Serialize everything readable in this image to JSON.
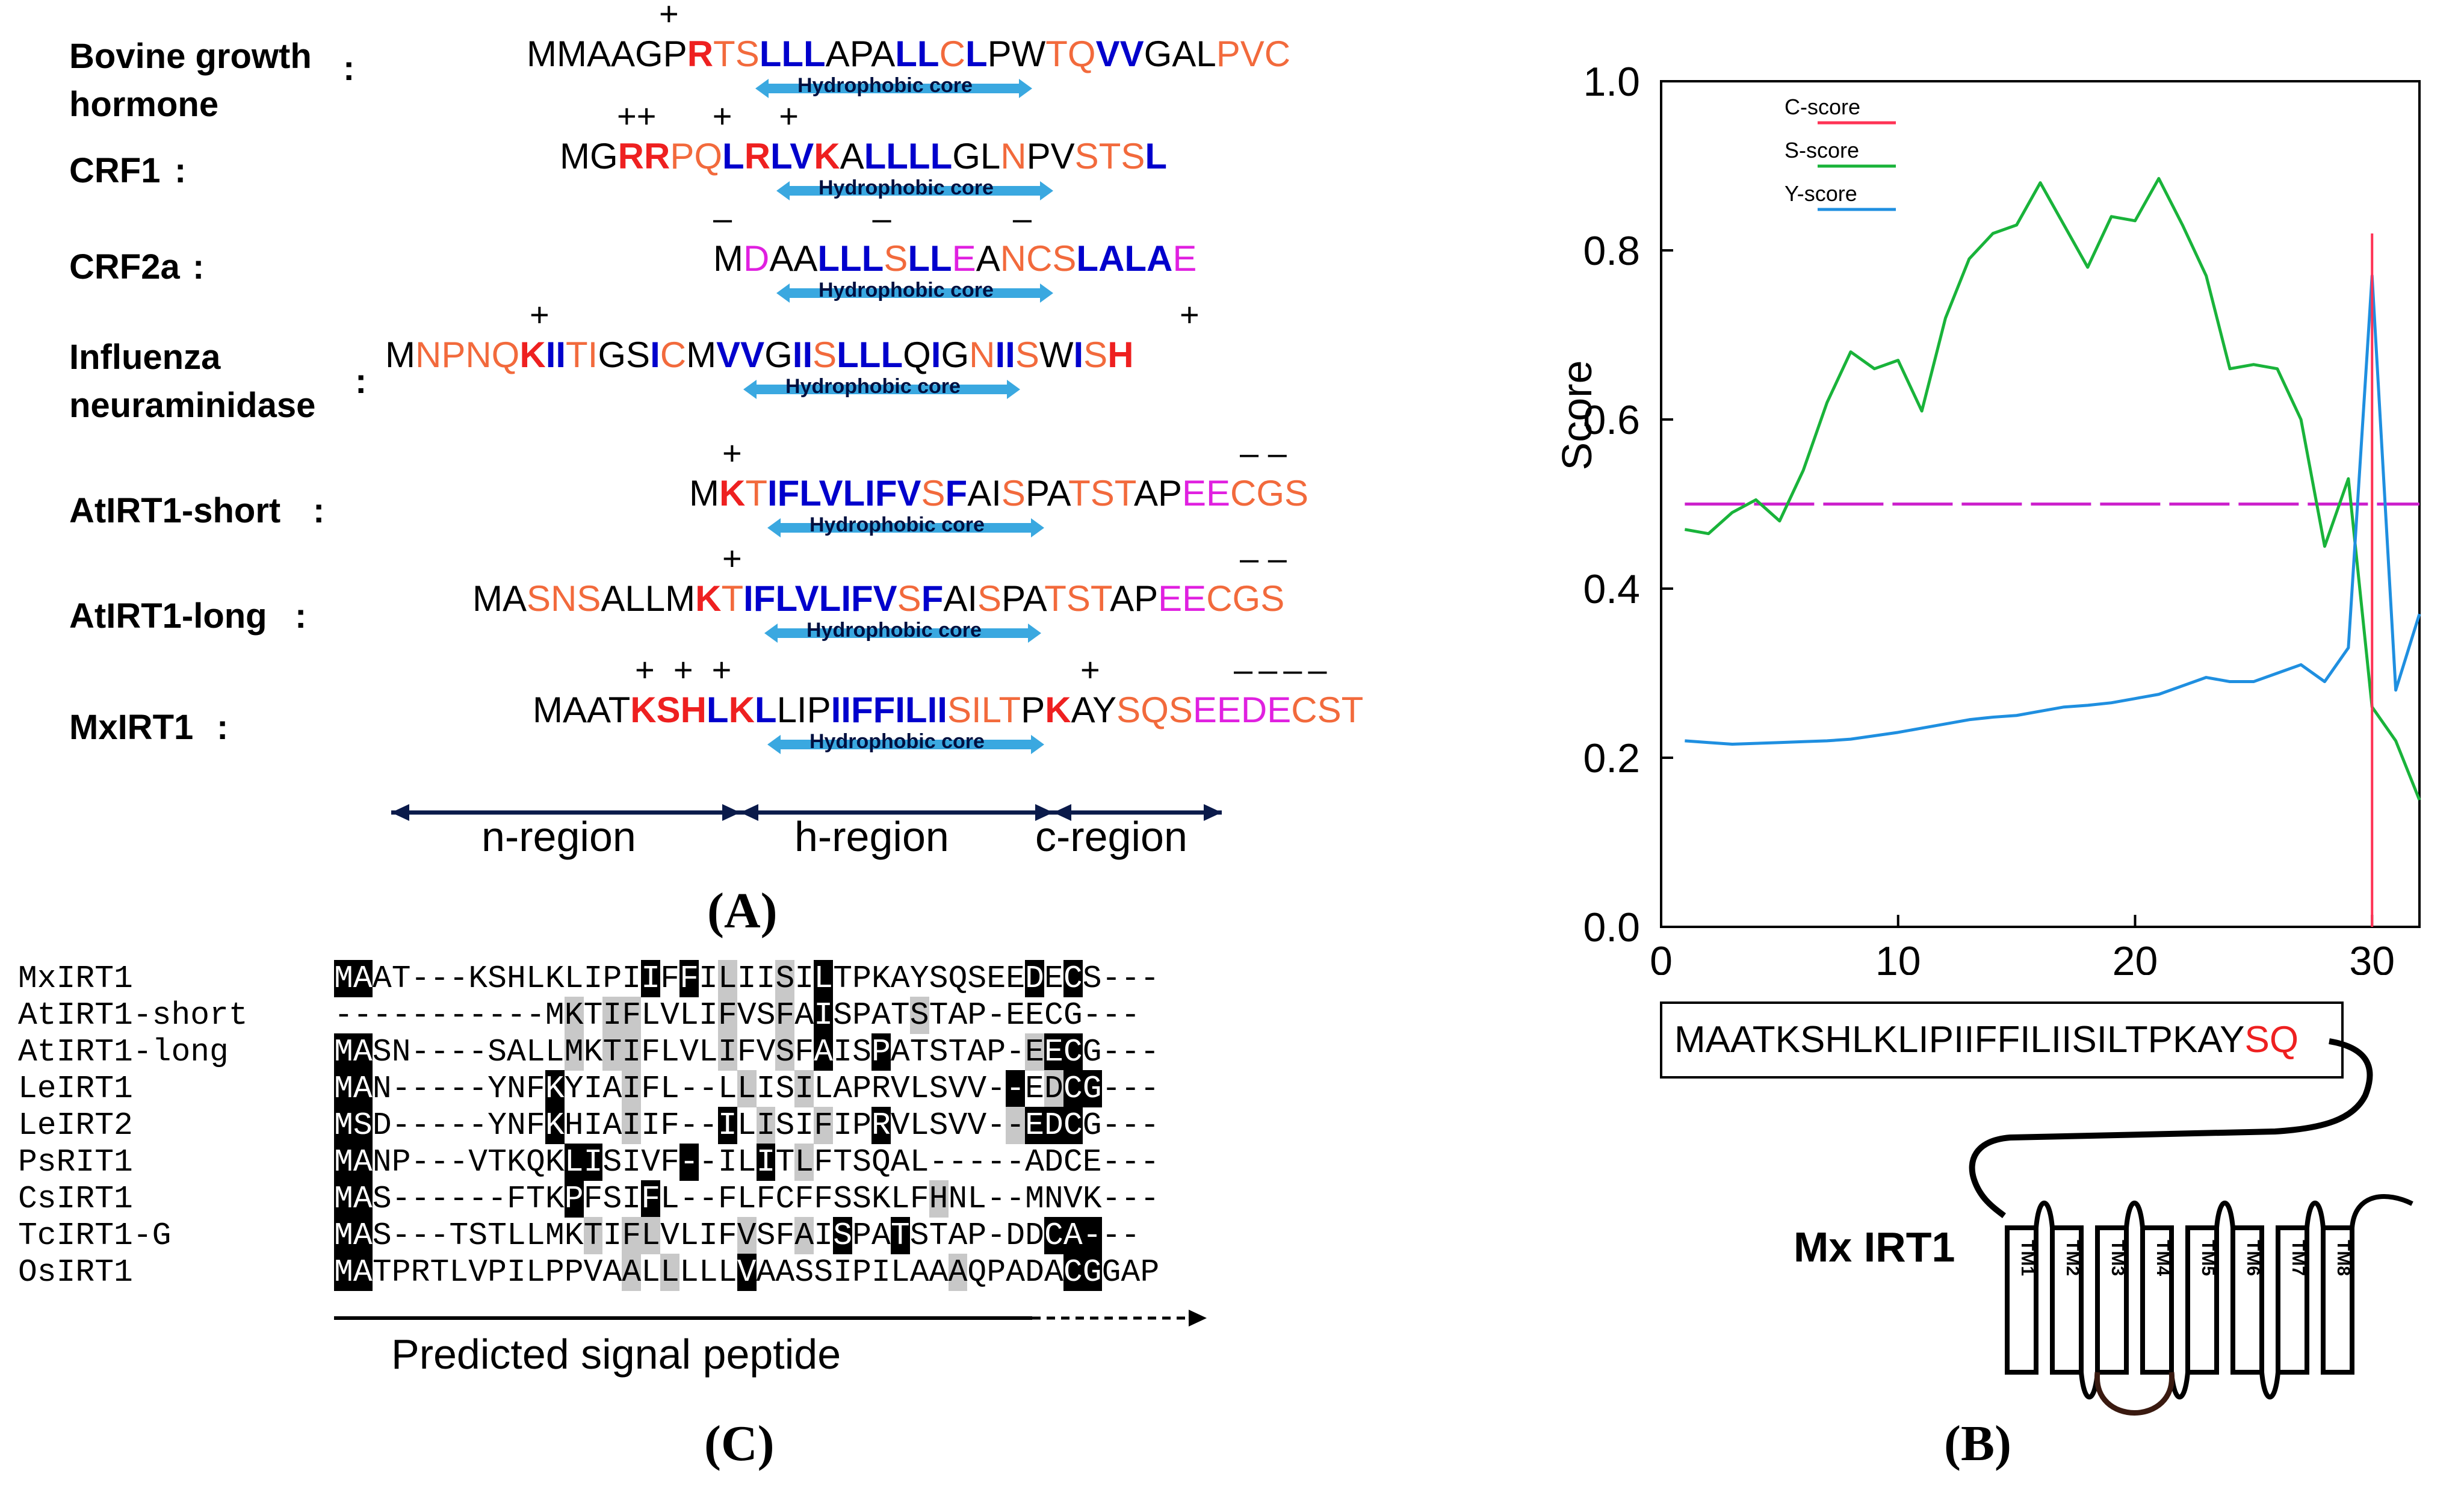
{
  "panel_labels": {
    "A": "(A)",
    "B": "(B)",
    "C": "(C)"
  },
  "panelA": {
    "colors": {
      "black": "#000000",
      "blue": "#0000cc",
      "red": "#ee2020",
      "orange": "#f26a3c",
      "magenta": "#e020e0",
      "arrow": "#3aa8e0"
    },
    "rows": [
      {
        "name": [
          "Bovine growth",
          "hormone"
        ],
        "colon": ":",
        "signs": "+",
        "hc_label": "Hydrophobic core",
        "seq": [
          [
            "MMAAGP",
            "k"
          ],
          [
            "R",
            "r"
          ],
          [
            "TS",
            "o"
          ],
          [
            "LLL",
            "B"
          ],
          [
            "APA",
            "k"
          ],
          [
            "LL",
            "B"
          ],
          [
            "C",
            "o"
          ],
          [
            "L",
            "B"
          ],
          [
            "PW",
            "k"
          ],
          [
            "TQ",
            "o"
          ],
          [
            "VV",
            "B"
          ],
          [
            "GAL",
            "k"
          ],
          [
            "P",
            "o"
          ],
          [
            "VC",
            "o"
          ]
        ]
      },
      {
        "name": [
          "CRF1"
        ],
        "colon": ":",
        "signs": "++      +     +",
        "hc_label": "Hydrophobic core",
        "seq": [
          [
            "MG",
            "k"
          ],
          [
            "RR",
            "r"
          ],
          [
            "PQ",
            "o"
          ],
          [
            "L",
            "B"
          ],
          [
            "R",
            "r"
          ],
          [
            "LV",
            "B"
          ],
          [
            "K",
            "r"
          ],
          [
            "A",
            "k"
          ],
          [
            "LLLL",
            "B"
          ],
          [
            "GL",
            "k"
          ],
          [
            "N",
            "o"
          ],
          [
            "PV",
            "k"
          ],
          [
            "STS",
            "o"
          ],
          [
            "L",
            "B"
          ]
        ]
      },
      {
        "name": [
          "CRF2a"
        ],
        "colon": ":",
        "signs": "–               –             –",
        "hc_label": "Hydrophobic core",
        "seq": [
          [
            "M",
            "k"
          ],
          [
            "D",
            "m"
          ],
          [
            "AA",
            "k"
          ],
          [
            "LLL",
            "B"
          ],
          [
            "S",
            "o"
          ],
          [
            "LL",
            "B"
          ],
          [
            "E",
            "m"
          ],
          [
            "A",
            "k"
          ],
          [
            "NCS",
            "o"
          ],
          [
            "LALA",
            "B"
          ],
          [
            "E",
            "m"
          ]
        ]
      },
      {
        "name": [
          "Influenza",
          "neuraminidase"
        ],
        "colon": ":",
        "signs": "+",
        "signs2": "+",
        "hc_label": "Hydrophobic core",
        "seq": [
          [
            "M",
            "k"
          ],
          [
            "NPNQ",
            "o"
          ],
          [
            "K",
            "r"
          ],
          [
            "II",
            "B"
          ],
          [
            "TI",
            "o"
          ],
          [
            "GS",
            "k"
          ],
          [
            "I",
            "B"
          ],
          [
            "C",
            "o"
          ],
          [
            "M",
            "k"
          ],
          [
            "VV",
            "B"
          ],
          [
            "G",
            "k"
          ],
          [
            "II",
            "B"
          ],
          [
            "S",
            "o"
          ],
          [
            "LLL",
            "B"
          ],
          [
            "Q",
            "k"
          ],
          [
            "I",
            "B"
          ],
          [
            "G",
            "k"
          ],
          [
            "N",
            "o"
          ],
          [
            "II",
            "B"
          ],
          [
            "S",
            "o"
          ],
          [
            "W",
            "k"
          ],
          [
            "I",
            "B"
          ],
          [
            "S",
            "o"
          ],
          [
            "H",
            "r"
          ]
        ]
      },
      {
        "name": [
          "AtIRT1-short"
        ],
        "colon": ":",
        "signs": "+",
        "signs2": "– –",
        "hc_label": "Hydrophobic core",
        "seq": [
          [
            "M",
            "k"
          ],
          [
            "K",
            "r"
          ],
          [
            "T",
            "o"
          ],
          [
            "IFLVLIFV",
            "B"
          ],
          [
            "S",
            "o"
          ],
          [
            "F",
            "B"
          ],
          [
            "AI",
            "k"
          ],
          [
            "S",
            "o"
          ],
          [
            "PA",
            "k"
          ],
          [
            "TST",
            "o"
          ],
          [
            "AP",
            "k"
          ],
          [
            "EE",
            "m"
          ],
          [
            "C",
            "o"
          ],
          [
            "GS",
            "o"
          ]
        ]
      },
      {
        "name": [
          "AtIRT1-long"
        ],
        "colon": ":",
        "signs": "+",
        "signs2": "– –",
        "hc_label": "Hydrophobic core",
        "seq": [
          [
            "MA",
            "k"
          ],
          [
            "SNS",
            "o"
          ],
          [
            "ALLM",
            "k"
          ],
          [
            "K",
            "r"
          ],
          [
            "T",
            "o"
          ],
          [
            "IFLVLIFV",
            "B"
          ],
          [
            "S",
            "o"
          ],
          [
            "F",
            "B"
          ],
          [
            "AI",
            "k"
          ],
          [
            "S",
            "o"
          ],
          [
            "PA",
            "k"
          ],
          [
            "TST",
            "o"
          ],
          [
            "AP",
            "k"
          ],
          [
            "EE",
            "m"
          ],
          [
            "C",
            "o"
          ],
          [
            "GS",
            "o"
          ]
        ]
      },
      {
        "name": [
          "MxIRT1"
        ],
        "colon": ":",
        "signs": "+  +  +",
        "signs2": "+",
        "signs3": "––––",
        "hc_label": "Hydrophobic core",
        "seq": [
          [
            "MAAT",
            "k"
          ],
          [
            "KSH",
            "r"
          ],
          [
            "L",
            "B"
          ],
          [
            "K",
            "r"
          ],
          [
            "L",
            "B"
          ],
          [
            "LIP",
            "k"
          ],
          [
            "IIFFILII",
            "B"
          ],
          [
            "SIL",
            "o"
          ],
          [
            "T",
            "o"
          ],
          [
            "P",
            "k"
          ],
          [
            "K",
            "r"
          ],
          [
            "AY",
            "k"
          ],
          [
            "SQS",
            "o"
          ],
          [
            "EEDE",
            "m"
          ],
          [
            "CST",
            "o"
          ]
        ]
      }
    ],
    "regions": [
      "n-region",
      "h-region",
      "c-region"
    ]
  },
  "panelB": {
    "ylabel": "Score",
    "yticks": [
      "0.0",
      "0.2",
      "0.4",
      "0.6",
      "0.8",
      "1.0"
    ],
    "xticks": [
      "0",
      "10",
      "20",
      "30"
    ],
    "legend": [
      {
        "name": "C-score",
        "color": "#ff3355"
      },
      {
        "name": "S-score",
        "color": "#19b33a"
      },
      {
        "name": "Y-score",
        "color": "#1f8fe0"
      }
    ],
    "threshold_color": "#cc22cc",
    "chart_data": {
      "type": "line",
      "xlim": [
        0,
        32
      ],
      "ylim": [
        0,
        1.0
      ],
      "threshold": 0.5,
      "c_score_peak": {
        "x": 30,
        "y": 0.82
      },
      "series": [
        {
          "name": "S-score",
          "x": [
            1,
            2,
            3,
            4,
            5,
            6,
            7,
            8,
            9,
            10,
            11,
            12,
            13,
            14,
            15,
            16,
            17,
            18,
            19,
            20,
            21,
            22,
            23,
            24,
            25,
            26,
            27,
            28,
            29,
            30,
            31,
            32
          ],
          "values": [
            0.47,
            0.465,
            0.49,
            0.505,
            0.48,
            0.54,
            0.62,
            0.68,
            0.66,
            0.67,
            0.61,
            0.72,
            0.79,
            0.82,
            0.83,
            0.88,
            0.83,
            0.78,
            0.84,
            0.835,
            0.885,
            0.83,
            0.77,
            0.66,
            0.665,
            0.66,
            0.6,
            0.45,
            0.53,
            0.26,
            0.22,
            0.15
          ]
        },
        {
          "name": "Y-score",
          "x": [
            1,
            2,
            3,
            4,
            5,
            6,
            7,
            8,
            9,
            10,
            11,
            12,
            13,
            14,
            15,
            16,
            17,
            18,
            19,
            20,
            21,
            22,
            23,
            24,
            25,
            26,
            27,
            28,
            29,
            30,
            31,
            32
          ],
          "values": [
            0.22,
            0.218,
            0.216,
            0.217,
            0.218,
            0.219,
            0.22,
            0.222,
            0.226,
            0.23,
            0.235,
            0.24,
            0.245,
            0.248,
            0.25,
            0.255,
            0.26,
            0.262,
            0.265,
            0.27,
            0.275,
            0.285,
            0.295,
            0.29,
            0.29,
            0.3,
            0.31,
            0.29,
            0.33,
            0.77,
            0.28,
            0.37
          ]
        }
      ]
    },
    "signal_seq": {
      "prefix": "MAATKSHLKLIPIIFFILIISILTPKAY",
      "cleaved": "SQ"
    },
    "protein_label": "Mx IRT1",
    "tm_labels": [
      "TM1",
      "TM2",
      "TM3",
      "TM4",
      "TM5",
      "TM6",
      "TM7",
      "TM8"
    ]
  },
  "panelC": {
    "footer": "Predicted signal peptide",
    "rows": [
      {
        "name": "MxIRT1",
        "seq": "MAAT---KSHLKLIPIIFFILIISILTPKAYSQSEEDECS---"
      },
      {
        "name": "AtIRT1-short",
        "seq": "-----------MKTIFLVLIFVSFAISPATSTAP-EECG---"
      },
      {
        "name": "AtIRT1-long",
        "seq": "MASN----SALLMKTIFLVLIFVSFAISPATSTAP-EECG---"
      },
      {
        "name": "LeIRT1",
        "seq": "MAN-----YNFKYIAIFL--LLISILAPRVLSVV--EDCG---"
      },
      {
        "name": "LeIRT2",
        "seq": "MSD-----YNFKHIAIIF--ILISIFIPRVLSVV--EDCG---"
      },
      {
        "name": "PsRIT1",
        "seq": "MANP---VTKQKLISIVF--ILITLFTSQAL-----ADCE---"
      },
      {
        "name": "CsIRT1",
        "seq": "MAS------FTKPFSIFL--FLFCFFSSKLFHNL--MNVK---"
      },
      {
        "name": "TcIRT1-G",
        "seq": "MAS---TSTLLMKTIFLVLIFVSFAISPATSTAP-DDCA---"
      },
      {
        "name": "OsIRT1",
        "seq": "MATPRTLVPILPPVAALLLLLVAASSIPILAAAQPADACGGAP"
      }
    ],
    "shade": [
      "kk..............k.k.g..g.k..........k.k...",
      "............g.gg....g..g.k....g..........",
      "kk..........g.gg....g..g.k..k.......gkk...",
      "kk.........k...g.....g..g..........k.gkk..",
      "kk.........k...g....k.g..g..k......gkkk...",
      "kk..........kk....k...k.g.................",
      "kk..........k...k..............g.........",
      "kk...........g.gg....g..g.k..k.......kkk..",
      "kk.............g.g...k..........g.....kk.."
    ]
  }
}
